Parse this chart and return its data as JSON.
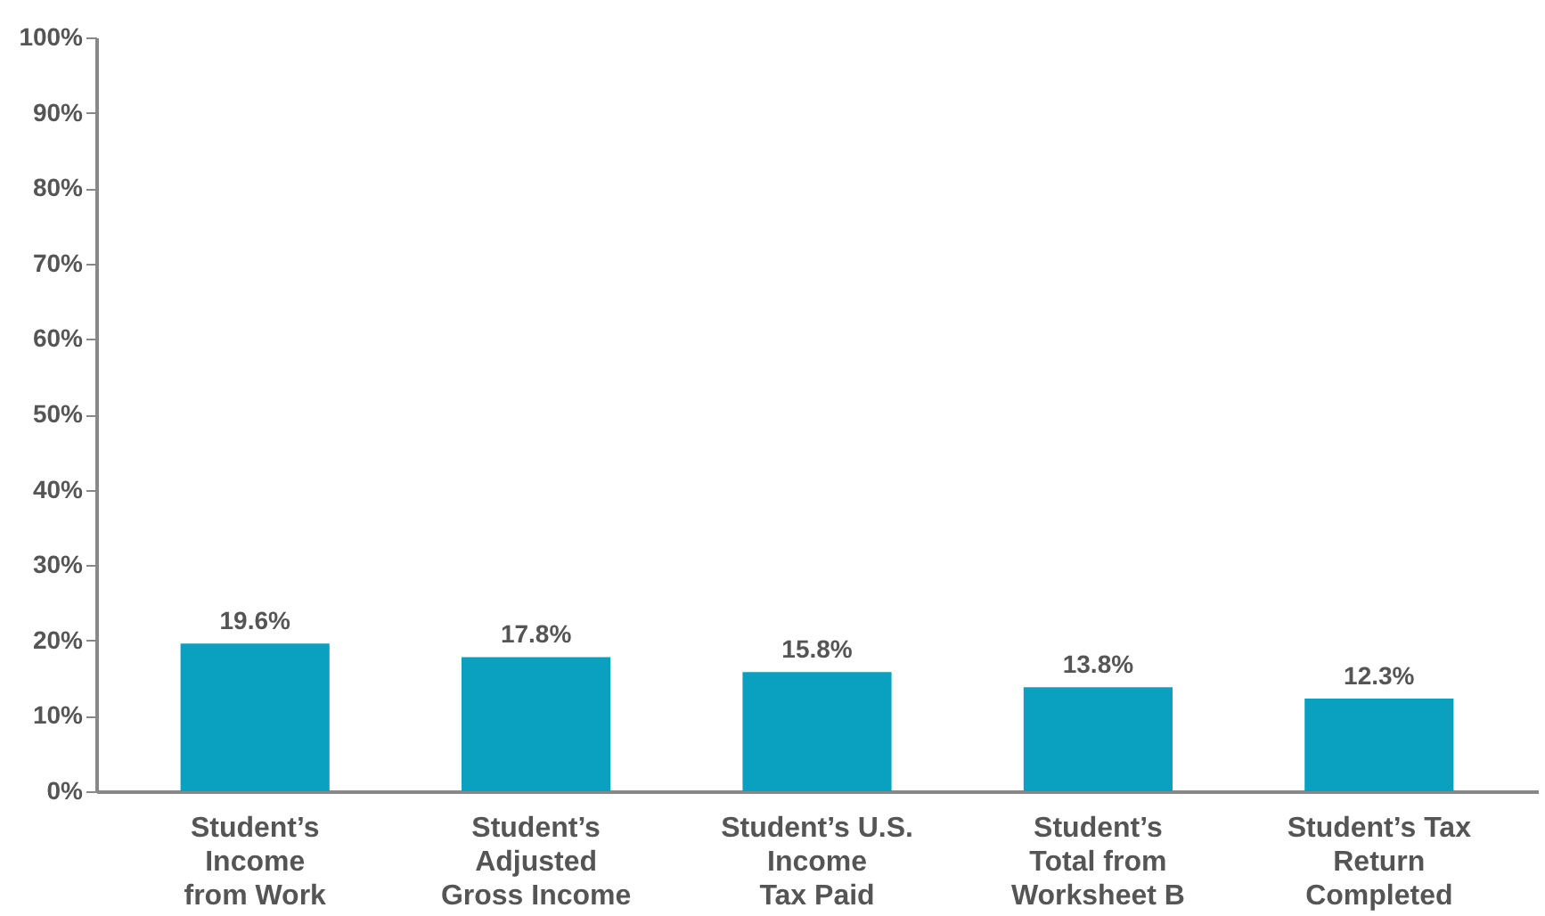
{
  "chart_data": {
    "type": "bar",
    "categories": [
      "Student’s\nIncome\nfrom Work",
      "Student’s\nAdjusted\nGross Income",
      "Student’s U.S.\nIncome\nTax Paid",
      "Student’s\nTotal from\nWorksheet B",
      "Student’s Tax\nReturn\nCompleted"
    ],
    "values": [
      19.6,
      17.8,
      15.8,
      13.8,
      12.3
    ],
    "value_labels": [
      "19.6%",
      "17.8%",
      "15.8%",
      "13.8%",
      "12.3%"
    ],
    "color": "#0aa0c0",
    "ylim": [
      0,
      100
    ],
    "yticks": [
      {
        "value": 0,
        "label": "0%"
      },
      {
        "value": 10,
        "label": "10%"
      },
      {
        "value": 20,
        "label": "20%"
      },
      {
        "value": 30,
        "label": "30%"
      },
      {
        "value": 40,
        "label": "40%"
      },
      {
        "value": 50,
        "label": "50%"
      },
      {
        "value": 60,
        "label": "60%"
      },
      {
        "value": 70,
        "label": "70%"
      },
      {
        "value": 80,
        "label": "80%"
      },
      {
        "value": 90,
        "label": "90%"
      },
      {
        "value": 100,
        "label": "100%"
      }
    ],
    "grid": false
  }
}
